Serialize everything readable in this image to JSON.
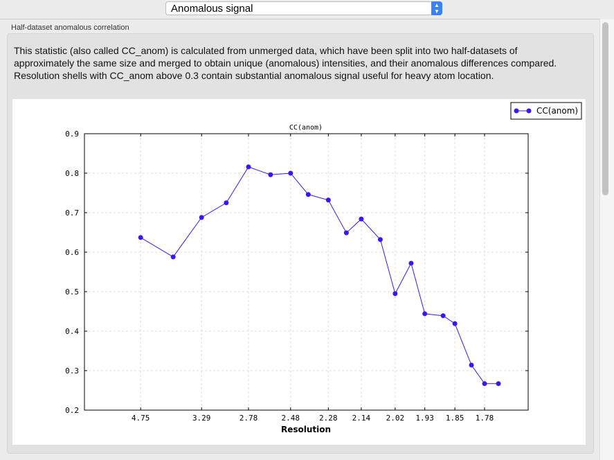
{
  "header": {
    "selector_value": "Anomalous signal"
  },
  "section": {
    "title": "Half-dataset anomalous correlation",
    "description": "This statistic (also called CC_anom) is calculated from unmerged data, which have been split into two half-datasets of approximately the same size and merged to obtain unique (anomalous) intensities, and their anomalous differences compared.  Resolution shells with CC_anom above 0.3 contain substantial anomalous signal useful for heavy atom location."
  },
  "chart_data": {
    "type": "line",
    "title": "CC(anom)",
    "xlabel": "Resolution",
    "ylabel": "",
    "x_scale": "reciprocal-square (1/d^2)",
    "x_ticks": [
      4.75,
      3.29,
      2.78,
      2.48,
      2.28,
      2.14,
      2.02,
      1.93,
      1.85,
      1.78
    ],
    "y_ticks": [
      0.2,
      0.3,
      0.4,
      0.5,
      0.6,
      0.7,
      0.8,
      0.9
    ],
    "ylim": [
      0.2,
      0.9
    ],
    "grid": true,
    "legend": "top-right",
    "color": "#3a17ee",
    "series": [
      {
        "name": "CC(anom)",
        "x": [
          4.75,
          3.78,
          3.29,
          2.99,
          2.78,
          2.61,
          2.48,
          2.38,
          2.28,
          2.2,
          2.14,
          2.07,
          2.02,
          1.97,
          1.93,
          1.88,
          1.85,
          1.81,
          1.78,
          1.75
        ],
        "y": [
          0.637,
          0.588,
          0.688,
          0.725,
          0.816,
          0.796,
          0.8,
          0.746,
          0.732,
          0.649,
          0.684,
          0.632,
          0.495,
          0.572,
          0.444,
          0.439,
          0.419,
          0.314,
          0.267,
          0.267
        ]
      }
    ]
  }
}
